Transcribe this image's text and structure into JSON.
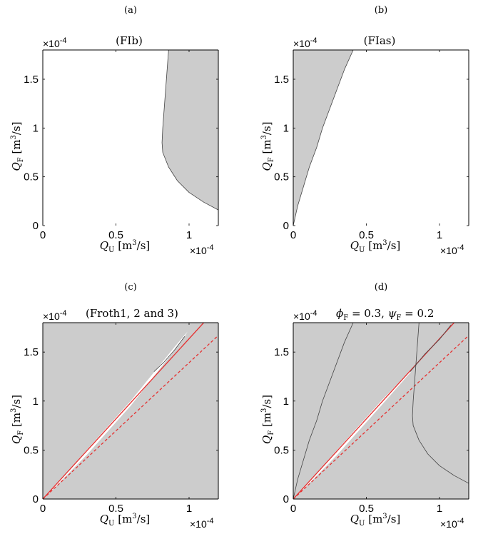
{
  "chart_data": [
    {
      "panel": "(a)",
      "type": "area",
      "title": "(FIb)",
      "xlabel": "Q_U [m^3/s]",
      "ylabel": "Q_F [m^3/s]",
      "x_exponent": "×10^-4",
      "y_exponent": "×10^-4",
      "xlim": [
        0,
        1.2
      ],
      "ylim": [
        0,
        1.8
      ],
      "xticks": [
        0,
        0.5,
        1
      ],
      "yticks": [
        0,
        0.5,
        1,
        1.5
      ],
      "xtick_labels": [
        "0",
        "0.5",
        "1"
      ],
      "ytick_labels": [
        "0",
        "0.5",
        "1",
        "1.5"
      ],
      "regions": [
        {
          "fill": "#cccccc",
          "boundary": [
            [
              0.86,
              1.8
            ],
            [
              0.85,
              1.6
            ],
            [
              0.84,
              1.4
            ],
            [
              0.83,
              1.2
            ],
            [
              0.82,
              1.0
            ],
            [
              0.815,
              0.85
            ],
            [
              0.82,
              0.75
            ],
            [
              0.86,
              0.6
            ],
            [
              0.92,
              0.46
            ],
            [
              1.0,
              0.34
            ],
            [
              1.1,
              0.24
            ],
            [
              1.2,
              0.16
            ],
            [
              1.2,
              1.8
            ]
          ]
        }
      ],
      "lines": [
        {
          "color": "#444444",
          "style": "solid",
          "points": [
            [
              0.86,
              1.8
            ],
            [
              0.85,
              1.6
            ],
            [
              0.84,
              1.4
            ],
            [
              0.83,
              1.2
            ],
            [
              0.82,
              1.0
            ],
            [
              0.815,
              0.85
            ],
            [
              0.82,
              0.75
            ],
            [
              0.86,
              0.6
            ],
            [
              0.92,
              0.46
            ],
            [
              1.0,
              0.34
            ],
            [
              1.1,
              0.24
            ],
            [
              1.2,
              0.16
            ]
          ]
        }
      ]
    },
    {
      "panel": "(b)",
      "type": "area",
      "title": "(FIas)",
      "xlabel": "Q_U [m^3/s]",
      "ylabel": "Q_F [m^3/s]",
      "x_exponent": "×10^-4",
      "y_exponent": "×10^-4",
      "xlim": [
        0,
        1.2
      ],
      "ylim": [
        0,
        1.8
      ],
      "xticks": [
        0,
        0.5,
        1
      ],
      "yticks": [
        0,
        0.5,
        1,
        1.5
      ],
      "xtick_labels": [
        "0",
        "0.5",
        "1"
      ],
      "ytick_labels": [
        "0",
        "0.5",
        "1",
        "1.5"
      ],
      "regions": [
        {
          "fill": "#cccccc",
          "boundary": [
            [
              0,
              0
            ],
            [
              0.03,
              0.2
            ],
            [
              0.07,
              0.4
            ],
            [
              0.11,
              0.6
            ],
            [
              0.16,
              0.8
            ],
            [
              0.2,
              1.0
            ],
            [
              0.25,
              1.2
            ],
            [
              0.3,
              1.4
            ],
            [
              0.35,
              1.6
            ],
            [
              0.41,
              1.8
            ],
            [
              0,
              1.8
            ]
          ]
        }
      ],
      "lines": [
        {
          "color": "#444444",
          "style": "solid",
          "points": [
            [
              0,
              0
            ],
            [
              0.03,
              0.2
            ],
            [
              0.07,
              0.4
            ],
            [
              0.11,
              0.6
            ],
            [
              0.16,
              0.8
            ],
            [
              0.2,
              1.0
            ],
            [
              0.25,
              1.2
            ],
            [
              0.3,
              1.4
            ],
            [
              0.35,
              1.6
            ],
            [
              0.41,
              1.8
            ]
          ]
        }
      ]
    },
    {
      "panel": "(c)",
      "type": "area",
      "title": "(Froth1, 2 and 3)",
      "xlabel": "Q_U [m^3/s]",
      "ylabel": "Q_F [m^3/s]",
      "x_exponent": "×10^-4",
      "y_exponent": "×10^-4",
      "xlim": [
        0,
        1.2
      ],
      "ylim": [
        0,
        1.8
      ],
      "xticks": [
        0,
        0.5,
        1
      ],
      "yticks": [
        0,
        0.5,
        1,
        1.5
      ],
      "xtick_labels": [
        "0",
        "0.5",
        "1"
      ],
      "ytick_labels": [
        "0",
        "0.5",
        "1",
        "1.5"
      ],
      "background": "#cccccc",
      "regions": [
        {
          "fill": "#ffffff",
          "boundary": [
            [
              0.01,
              0.01
            ],
            [
              0.3,
              0.5
            ],
            [
              0.6,
              1.0
            ],
            [
              0.9,
              1.55
            ],
            [
              0.99,
              1.71
            ],
            [
              0.97,
              1.66
            ],
            [
              0.88,
              1.48
            ],
            [
              0.6,
              0.95
            ],
            [
              0.3,
              0.45
            ],
            [
              0.01,
              0.01
            ]
          ]
        }
      ],
      "lines": [
        {
          "color": "#e53030",
          "style": "solid",
          "points": [
            [
              0,
              0
            ],
            [
              1.1,
              1.8
            ]
          ]
        },
        {
          "color": "#e53030",
          "style": "dashed",
          "points": [
            [
              0,
              0
            ],
            [
              1.2,
              1.67
            ]
          ]
        },
        {
          "color": "#444444",
          "style": "solid",
          "points": [
            [
              0.76,
              1.3
            ],
            [
              0.83,
              1.4
            ],
            [
              0.9,
              1.52
            ],
            [
              0.97,
              1.66
            ]
          ]
        }
      ]
    },
    {
      "panel": "(d)",
      "type": "area",
      "title": "ϕF = 0.3, ψF = 0.2",
      "title_parts": {
        "phi": "ϕ",
        "phi_sub": "F",
        "phi_val": " = 0.3, ",
        "psi": "ψ",
        "psi_sub": "F",
        "psi_val": " = 0.2"
      },
      "xlabel": "Q_U [m^3/s]",
      "ylabel": "Q_F [m^3/s]",
      "x_exponent": "×10^-4",
      "y_exponent": "×10^-4",
      "xlim": [
        0,
        1.2
      ],
      "ylim": [
        0,
        1.8
      ],
      "xticks": [
        0,
        0.5,
        1
      ],
      "yticks": [
        0,
        0.5,
        1,
        1.5
      ],
      "xtick_labels": [
        "0",
        "0.5",
        "1"
      ],
      "ytick_labels": [
        "0",
        "0.5",
        "1",
        "1.5"
      ],
      "background": "#cccccc",
      "regions": [
        {
          "fill": "#ffffff",
          "boundary": [
            [
              0.01,
              0.01
            ],
            [
              0.3,
              0.5
            ],
            [
              0.6,
              1.0
            ],
            [
              0.8,
              1.31
            ],
            [
              0.82,
              1.33
            ],
            [
              0.8,
              1.29
            ],
            [
              0.6,
              0.95
            ],
            [
              0.3,
              0.45
            ],
            [
              0.01,
              0.01
            ]
          ]
        }
      ],
      "lines": [
        {
          "color": "#e53030",
          "style": "solid",
          "points": [
            [
              0,
              0
            ],
            [
              1.1,
              1.8
            ]
          ]
        },
        {
          "color": "#e53030",
          "style": "dashed",
          "points": [
            [
              0,
              0
            ],
            [
              1.2,
              1.67
            ]
          ]
        },
        {
          "color": "#444444",
          "style": "solid",
          "points": [
            [
              0,
              0
            ],
            [
              0.03,
              0.2
            ],
            [
              0.07,
              0.4
            ],
            [
              0.11,
              0.6
            ],
            [
              0.16,
              0.8
            ],
            [
              0.2,
              1.0
            ],
            [
              0.25,
              1.2
            ],
            [
              0.3,
              1.4
            ],
            [
              0.35,
              1.6
            ],
            [
              0.41,
              1.8
            ]
          ]
        },
        {
          "color": "#444444",
          "style": "solid",
          "points": [
            [
              0.86,
              1.8
            ],
            [
              0.85,
              1.6
            ],
            [
              0.84,
              1.4
            ],
            [
              0.83,
              1.2
            ],
            [
              0.82,
              1.0
            ],
            [
              0.815,
              0.85
            ],
            [
              0.82,
              0.75
            ],
            [
              0.86,
              0.6
            ],
            [
              0.92,
              0.46
            ],
            [
              1.0,
              0.34
            ],
            [
              1.1,
              0.24
            ],
            [
              1.2,
              0.16
            ]
          ]
        },
        {
          "color": "#444444",
          "style": "solid",
          "points": [
            [
              0.8,
              1.3
            ],
            [
              0.9,
              1.48
            ],
            [
              1.0,
              1.63
            ],
            [
              1.08,
              1.78
            ]
          ]
        }
      ]
    }
  ]
}
